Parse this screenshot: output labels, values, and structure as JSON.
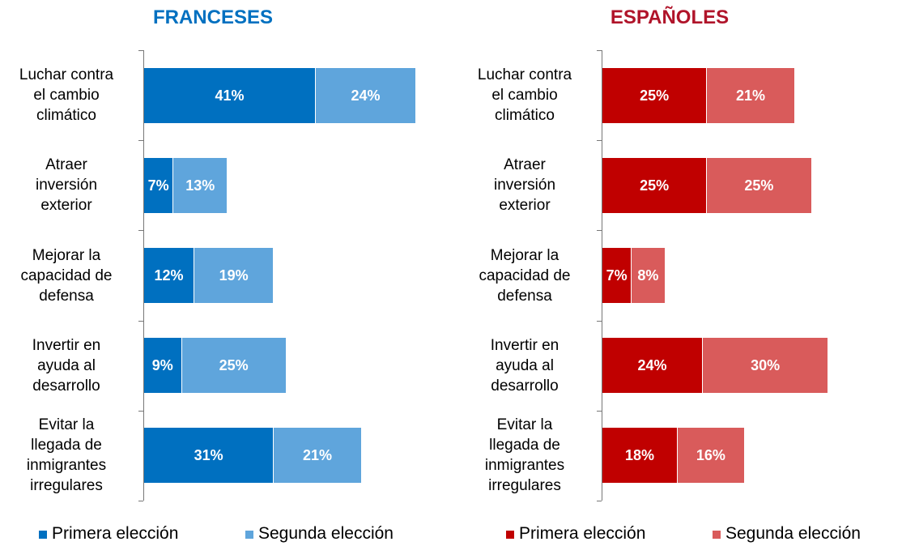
{
  "chart_data": [
    {
      "type": "stacked-bar-horizontal",
      "title": "FRANCESES",
      "title_color": "#0070c0",
      "categories": [
        "Luchar contra\nel cambio\nclimático",
        "Atraer\ninversión\nexterior",
        "Mejorar la\ncapacidad de\ndefensa",
        "Invertir en\nayuda al\ndesarrollo",
        "Evitar la\nllegada de\ninmigrantes\nirregulares"
      ],
      "series": [
        {
          "name": "Primera elección",
          "color": "#0070c0",
          "values": [
            41,
            7,
            12,
            9,
            31
          ],
          "value_labels": [
            "41%",
            "7%",
            "12%",
            "9%",
            "31%"
          ]
        },
        {
          "name": "Segunda elección",
          "color": "#5fa5dc",
          "values": [
            24,
            13,
            19,
            25,
            21
          ],
          "value_labels": [
            "24%",
            "13%",
            "19%",
            "25%",
            "21%"
          ]
        }
      ]
    },
    {
      "type": "stacked-bar-horizontal",
      "title": "ESPAÑOLES",
      "title_color": "#b0142a",
      "categories": [
        "Luchar contra\nel cambio\nclimático",
        "Atraer\ninversión\nexterior",
        "Mejorar la\ncapacidad de\ndefensa",
        "Invertir en\nayuda al\ndesarrollo",
        "Evitar la\nllegada de\ninmigrantes\nirregulares"
      ],
      "series": [
        {
          "name": "Primera elección",
          "color": "#c00000",
          "values": [
            25,
            25,
            7,
            24,
            18
          ],
          "value_labels": [
            "25%",
            "25%",
            "7%",
            "24%",
            "18%"
          ]
        },
        {
          "name": "Segunda elección",
          "color": "#d95b5b",
          "values": [
            21,
            25,
            8,
            30,
            16
          ],
          "value_labels": [
            "21%",
            "25%",
            "8%",
            "30%",
            "16%"
          ]
        }
      ]
    }
  ]
}
